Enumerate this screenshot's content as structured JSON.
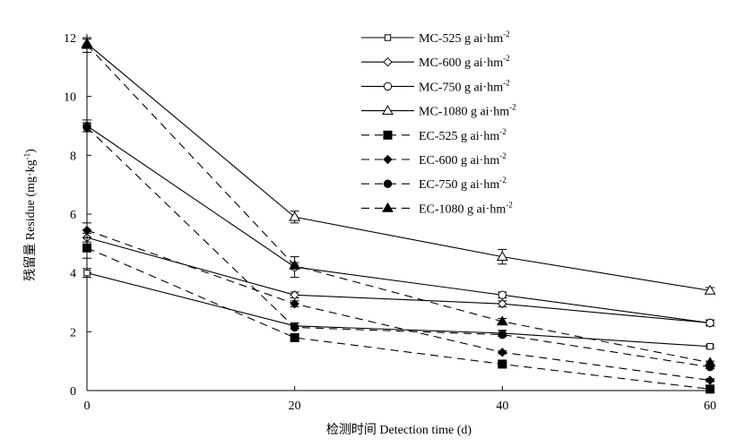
{
  "chart_data": {
    "type": "line",
    "title": "",
    "xlabel": "检测时间 Detection time (d)",
    "ylabel": "残留量 Residue (mg·kg",
    "ylabel_sup": "-1",
    "ylabel_tail": ")",
    "x": [
      0,
      20,
      40,
      60
    ],
    "xlim": [
      0,
      60
    ],
    "ylim": [
      0,
      12
    ],
    "xticks": [
      "0",
      "20",
      "40",
      "60"
    ],
    "yticks": [
      "0",
      "2",
      "4",
      "6",
      "8",
      "10",
      "12"
    ],
    "grid": false,
    "legend_position": "top-right",
    "series": [
      {
        "name": "MC-525 g ai·hm",
        "sup": "-2",
        "line": "solid",
        "marker": "square-open",
        "values": [
          4.0,
          2.2,
          1.95,
          1.5
        ],
        "err": [
          0.15,
          0.1,
          0.1,
          0.05
        ]
      },
      {
        "name": "MC-600 g ai·hm",
        "sup": "-2",
        "line": "solid",
        "marker": "diamond-open",
        "values": [
          5.2,
          3.25,
          2.95,
          2.3
        ],
        "err": [
          0.15,
          0.1,
          0.1,
          0.1
        ]
      },
      {
        "name": "MC-750 g ai·hm",
        "sup": "-2",
        "line": "solid",
        "marker": "circle-open",
        "values": [
          9.0,
          4.2,
          3.25,
          2.3
        ],
        "err": [
          0.2,
          0.35,
          0.1,
          0.1
        ]
      },
      {
        "name": "MC-1080 g ai·hm",
        "sup": "-2",
        "line": "solid",
        "marker": "triangle-open",
        "values": [
          11.8,
          5.9,
          4.55,
          3.4
        ],
        "err": [
          0.15,
          0.2,
          0.25,
          0.1
        ]
      },
      {
        "name": "EC-525 g ai·hm",
        "sup": "-2",
        "line": "dashed",
        "marker": "square",
        "values": [
          4.85,
          1.8,
          0.9,
          0.05
        ],
        "err": [
          0.35,
          0.1,
          0.05,
          0.05
        ]
      },
      {
        "name": "EC-600 g ai·hm",
        "sup": "-2",
        "line": "dashed",
        "marker": "diamond",
        "values": [
          5.45,
          2.95,
          1.3,
          0.35
        ],
        "err": [
          0.25,
          0.1,
          0.05,
          0.05
        ]
      },
      {
        "name": "EC-750 g ai·hm",
        "sup": "-2",
        "line": "dashed",
        "marker": "circle",
        "values": [
          8.95,
          2.15,
          1.9,
          0.8
        ],
        "err": [
          0.15,
          0.05,
          0.05,
          0.05
        ]
      },
      {
        "name": "EC-1080 g ai·hm",
        "sup": "-2",
        "line": "dashed",
        "marker": "triangle",
        "values": [
          11.75,
          4.25,
          2.35,
          0.95
        ],
        "err": [
          0.25,
          0.1,
          0.1,
          0.05
        ]
      }
    ]
  }
}
